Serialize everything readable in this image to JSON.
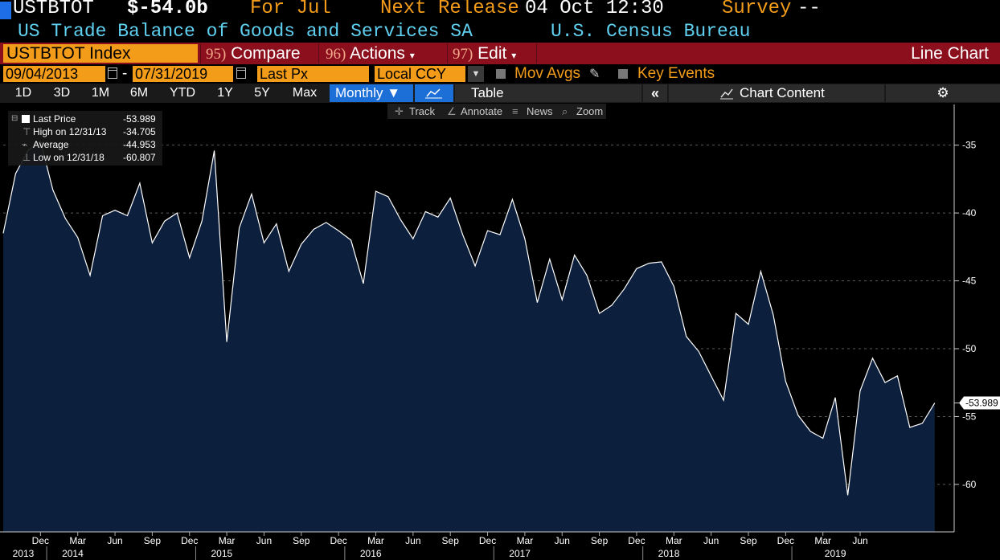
{
  "header": {
    "ticker": "USTBTOT",
    "value": "$-54.0b",
    "period": "For Jul",
    "next_release_label": "Next Release",
    "next_release_value": "04 Oct 12:30",
    "survey_label": "Survey",
    "survey_value": "--",
    "description": "US Trade Balance of Goods and Services SA",
    "source": "U.S. Census Bureau"
  },
  "toolbar": {
    "security": "USTBTOT Index",
    "compare_num": "95)",
    "compare_label": "Compare",
    "actions_num": "96)",
    "actions_label": "Actions",
    "edit_num": "97)",
    "edit_label": "Edit",
    "chart_title": "Line Chart"
  },
  "range": {
    "start": "09/04/2013",
    "dash": "-",
    "end": "07/31/2019",
    "field": "Last Px",
    "currency": "Local CCY",
    "mov_avgs": "Mov Avgs",
    "key_events": "Key Events"
  },
  "periods": [
    "1D",
    "3D",
    "1M",
    "6M",
    "YTD",
    "1Y",
    "5Y",
    "Max"
  ],
  "frequency": "Monthly ▼",
  "table_label": "Table",
  "collapse_label": "«",
  "chart_content_label": "Chart Content",
  "settings_icon_glyph": "⚙",
  "tools": {
    "track": "Track",
    "annotate": "Annotate",
    "news": "News",
    "zoom": "Zoom"
  },
  "legend": {
    "rows": [
      {
        "label": "Last Price",
        "value": "-53.989"
      },
      {
        "label": "High on 12/31/13",
        "value": "-34.705"
      },
      {
        "label": "Average",
        "value": "-44.953"
      },
      {
        "label": "Low on 12/31/18",
        "value": "-60.807"
      }
    ]
  },
  "colors": {
    "orange": "#f39c1a",
    "cyan": "#5fd0f0",
    "red_bar": "#8c0f1d",
    "blue": "#1d6fd8",
    "area_fill": "#0c1f3d"
  },
  "chart_data": {
    "type": "area",
    "ylim": [
      -63.5,
      -32
    ],
    "yticks": [
      -35,
      -40,
      -45,
      -50,
      -55,
      -60
    ],
    "last_value_label": "-53.989",
    "x_start": "2013-09",
    "x_end": "2019-07",
    "x_tick_labels": [
      "Dec",
      "Mar",
      "Jun",
      "Sep",
      "Dec",
      "Mar",
      "Jun",
      "Sep",
      "Dec",
      "Mar",
      "Jun",
      "Sep",
      "Dec",
      "Mar",
      "Jun",
      "Sep",
      "Dec",
      "Mar",
      "Jun",
      "Sep",
      "Dec",
      "Mar",
      "Jun"
    ],
    "year_labels": [
      "2013",
      "2014",
      "2015",
      "2016",
      "2017",
      "2018",
      "2019"
    ],
    "series": [
      {
        "values": [
          -41.5,
          -37.1,
          -35.4,
          -34.7,
          -38.3,
          -40.4,
          -41.8,
          -44.6,
          -40.2,
          -39.8,
          -40.2,
          -37.8,
          -42.2,
          -40.6,
          -40.0,
          -43.3,
          -40.6,
          -35.4,
          -49.5,
          -41.1,
          -38.6,
          -42.2,
          -40.8,
          -44.3,
          -42.3,
          -41.2,
          -40.7,
          -41.3,
          -42.0,
          -45.2,
          -38.4,
          -38.8,
          -40.5,
          -41.9,
          -39.9,
          -40.3,
          -38.9,
          -41.6,
          -43.9,
          -41.3,
          -41.6,
          -39.0,
          -41.9,
          -46.6,
          -43.4,
          -46.4,
          -43.1,
          -44.6,
          -47.4,
          -46.8,
          -45.6,
          -44.1,
          -43.7,
          -43.6,
          -45.4,
          -49.1,
          -50.2,
          -52.0,
          -53.8,
          -47.4,
          -48.2,
          -44.3,
          -47.5,
          -52.4,
          -54.9,
          -56.1,
          -56.6,
          -53.6,
          -60.8,
          -53.1,
          -50.7,
          -52.5,
          -52.0,
          -55.8,
          -55.5,
          -54.0
        ]
      }
    ]
  }
}
